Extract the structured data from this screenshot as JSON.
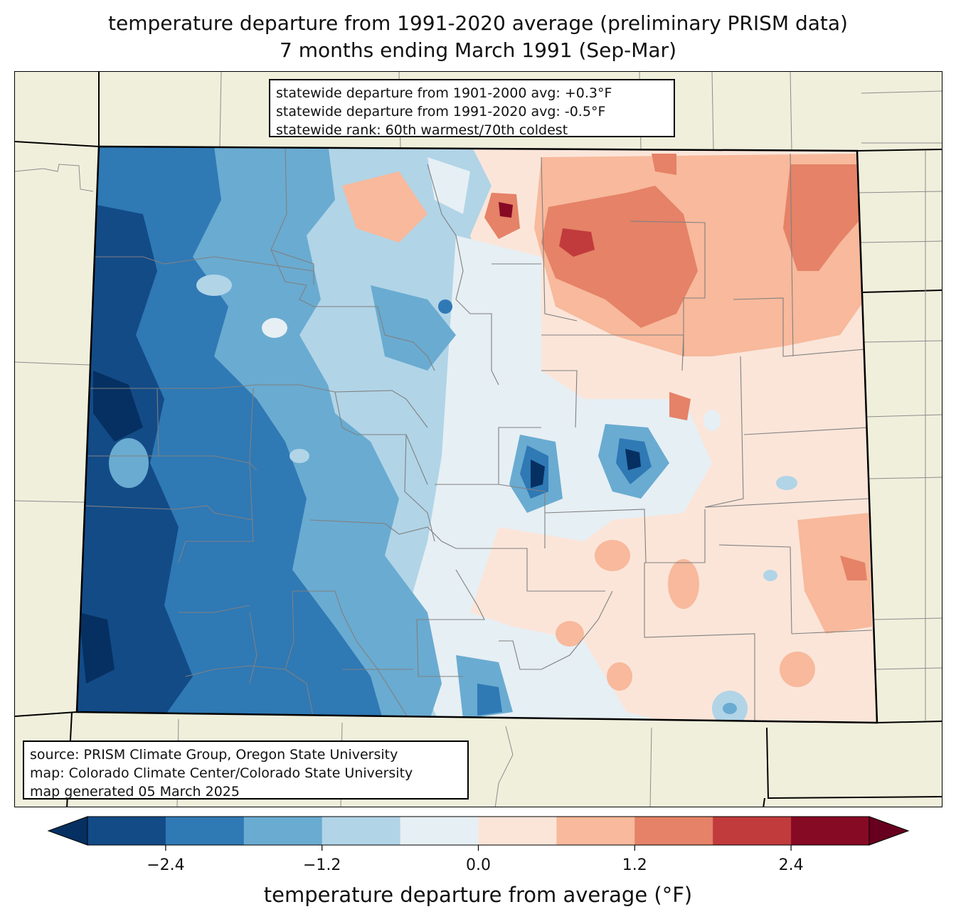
{
  "title": {
    "line1": "temperature departure from 1991-2020 average (preliminary PRISM data)",
    "line2": "7 months ending March 1991 (Sep-Mar)"
  },
  "stats_box": {
    "line1": "statewide departure from 1901-2000 avg: +0.3°F",
    "line2": "statewide departure from 1991-2020 avg: -0.5°F",
    "line3": "statewide rank: 60th warmest/70th coldest"
  },
  "source_box": {
    "line1": "source: PRISM Climate Group, Oregon State University",
    "line2": "map: Colorado Climate Center/Colorado State University",
    "line3": "map generated 05 March 2025"
  },
  "colorbar": {
    "label": "temperature departure from average (°F)",
    "bounds": [
      -3.0,
      -2.4,
      -1.8,
      -1.2,
      -0.6,
      0.0,
      0.6,
      1.2,
      1.8,
      2.4,
      3.0
    ],
    "colors": [
      "#134b87",
      "#2f79b5",
      "#6aabd1",
      "#b1d4e7",
      "#e6eff4",
      "#fbe5d9",
      "#f8b99c",
      "#e58267",
      "#c13b3c",
      "#870a24"
    ],
    "under_color": "#053061",
    "over_color": "#67001f",
    "ticks": [
      {
        "value": -2.4,
        "label": "−2.4"
      },
      {
        "value": -1.2,
        "label": "−1.2"
      },
      {
        "value": 0.0,
        "label": "0.0"
      },
      {
        "value": 1.2,
        "label": "1.2"
      },
      {
        "value": 2.4,
        "label": "2.4"
      }
    ]
  },
  "map_colors": {
    "background": "#f0efdc",
    "state_border": "#000000",
    "county_border": "#808080"
  }
}
